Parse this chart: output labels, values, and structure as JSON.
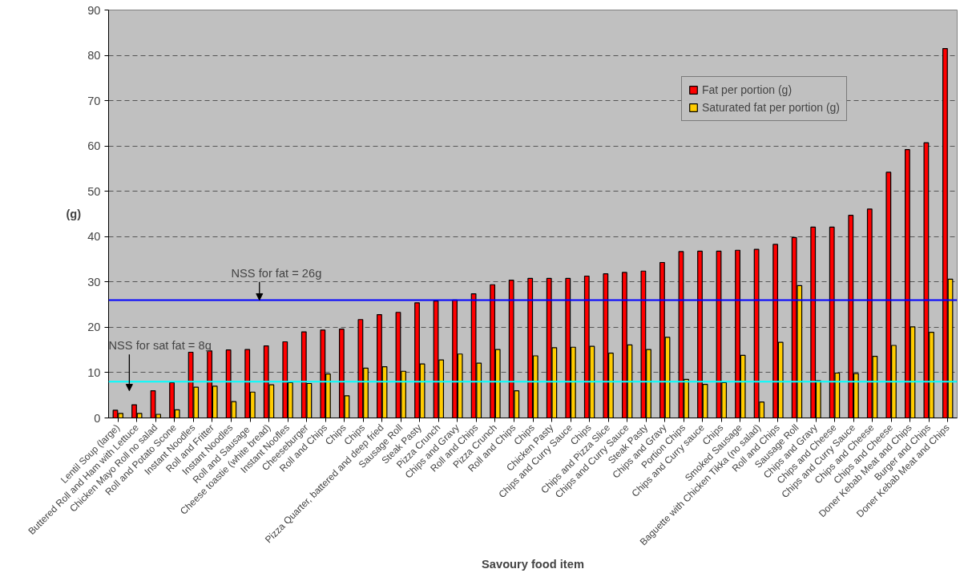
{
  "chart_data": {
    "type": "bar",
    "xlabel": "Savoury food item",
    "ylabel": "(g)",
    "categories": [
      "Lentil Soup (large)",
      "Buttered Roll and Ham with Lettuce",
      "Chicken Mayo Roll no salad",
      "Roll and Potato Scone",
      "Instant Noodles",
      "Roll and Fritter",
      "Instant Noodles",
      "Roll and  Sausage",
      "Cheese toastie (white bread)",
      "Instant Noofles",
      "Cheeseburger",
      "Roll and Chips",
      "Chips",
      "Chips",
      "Pizza Quarter, battered and deep fried",
      "Sausage Roll",
      "Steak Pasty",
      "Pizza Crunch",
      "Chips and Gravy",
      "Roll and Chips",
      "Pizza Crunch",
      "Roll and Chips",
      "Chips",
      "Chicken Pasty",
      "Chips and Curry Sauce",
      "Chips",
      "Chips and Pizza Slice",
      "Chips and Curry Sauce",
      "Steak Pasty",
      "Chips and Gravy",
      "Portion Chips",
      "Chips and Curry sauce",
      "Chips",
      "Smoked Sausage",
      "Baguette with Chicken Tikka (no salad)",
      "Roll and Chips",
      "Sausage Roll",
      "Chips and Gravy",
      "Chips and Cheese",
      "Chips and Curry Sauce",
      "Chips and Cheese",
      "Chips and Cheese",
      "Doner Kebab Meat and Chips",
      "Burger and Chips",
      "Doner Kebab Meat and Chips"
    ],
    "series": [
      {
        "name": "Fat per portion (g)",
        "color": "#ff0000",
        "values": [
          1.7,
          2.9,
          6,
          7.8,
          14.5,
          14.8,
          15,
          15.1,
          15.9,
          16.8,
          19,
          19.4,
          19.6,
          21.7,
          22.8,
          23.3,
          25.4,
          25.8,
          26,
          27.4,
          29.4,
          30.4,
          30.8,
          30.8,
          30.8,
          31.3,
          31.8,
          32.1,
          32.4,
          34.3,
          36.7,
          36.8,
          36.8,
          37,
          37.2,
          38.3,
          39.8,
          42.1,
          42.1,
          44.7,
          46.1,
          54.2,
          59.2,
          60.7,
          81.5
        ]
      },
      {
        "name": "Saturated fat per portion (g)",
        "color": "#ffcc00",
        "values": [
          1,
          1,
          0.8,
          1.8,
          6.8,
          7,
          3.6,
          5.7,
          7.3,
          7.8,
          7.6,
          9.7,
          4.9,
          11,
          11.3,
          10.3,
          11.9,
          12.8,
          14.1,
          12.1,
          15.1,
          6,
          13.7,
          15.5,
          15.6,
          15.8,
          14.3,
          16.1,
          15.1,
          17.8,
          8.5,
          7.4,
          7.8,
          13.8,
          3.5,
          16.7,
          29.2,
          8.2,
          9.9,
          9.8,
          13.6,
          16,
          20.1,
          18.9,
          30.6
        ]
      }
    ],
    "ylim": [
      0,
      90
    ],
    "yticks": [
      0,
      10,
      20,
      30,
      40,
      50,
      60,
      70,
      80,
      90
    ],
    "grid": "y",
    "legend": "top right",
    "ref_lines": [
      {
        "axis": "y",
        "value": 26,
        "label": "NSS for fat = 26g",
        "color": "#0000ff"
      },
      {
        "axis": "y",
        "value": 8,
        "label": "NSS for sat fat = 8g",
        "color": "#00ffff"
      }
    ]
  }
}
